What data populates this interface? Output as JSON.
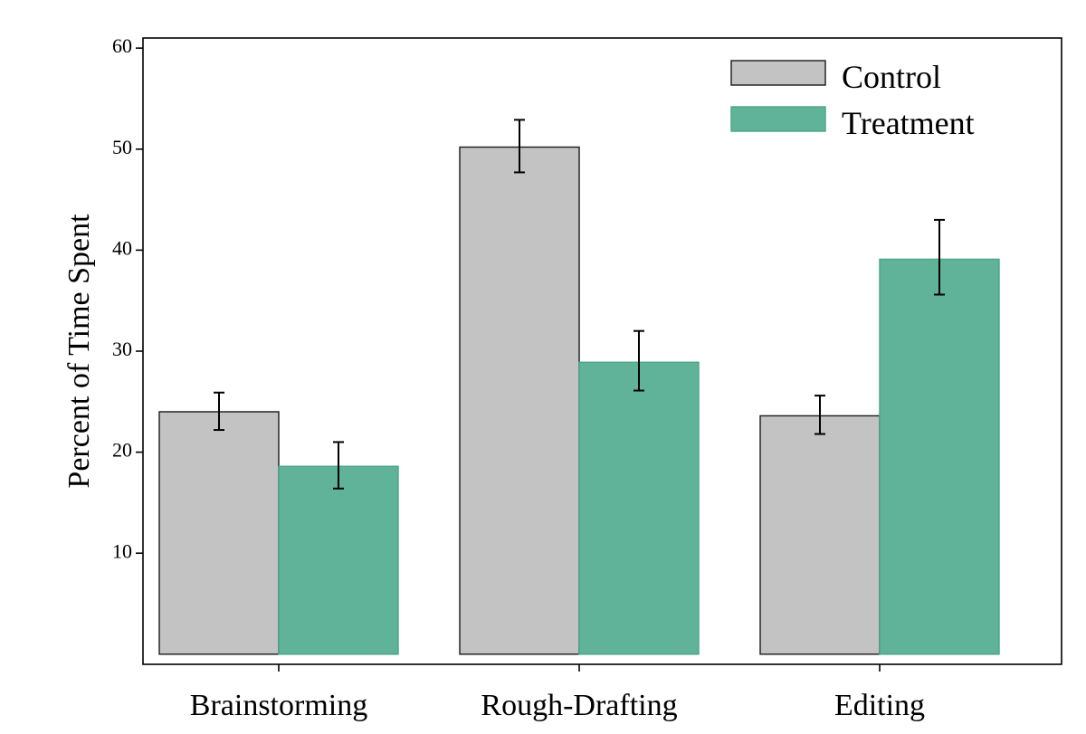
{
  "chart_data": {
    "type": "bar",
    "title": "",
    "xlabel": "",
    "ylabel": "Percent of Time Spent",
    "ylim": [
      -1,
      61
    ],
    "yticks": [
      10,
      20,
      30,
      40,
      50,
      60
    ],
    "grid": false,
    "legend_position": "top-right",
    "categories": [
      "Brainstorming",
      "Rough-Drafting",
      "Editing"
    ],
    "series": [
      {
        "name": "Control",
        "color": "#c3c3c3",
        "stroke": "#1a1a1a",
        "values": [
          24.0,
          50.2,
          23.6
        ],
        "err_low": [
          22.2,
          47.7,
          21.8
        ],
        "err_high": [
          25.9,
          52.9,
          25.6
        ]
      },
      {
        "name": "Treatment",
        "color": "#60b398",
        "stroke": "#4aa587",
        "values": [
          18.6,
          28.9,
          39.1
        ],
        "err_low": [
          16.4,
          26.1,
          35.6
        ],
        "err_high": [
          21.0,
          32.0,
          43.0
        ]
      }
    ]
  }
}
